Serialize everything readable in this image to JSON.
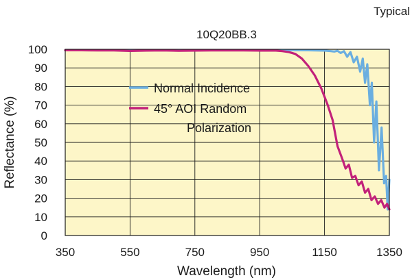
{
  "chart_data": {
    "type": "line",
    "title": "10Q20BB.3",
    "corner_label": "Typical",
    "xlabel": "Wavelength (nm)",
    "ylabel": "Reflectance (%)",
    "xlim": [
      350,
      1350
    ],
    "ylim": [
      0,
      100
    ],
    "xticks": [
      "350",
      "550",
      "750",
      "950",
      "1150",
      "1350"
    ],
    "yticks": [
      "0",
      "10",
      "20",
      "30",
      "40",
      "50",
      "60",
      "70",
      "80",
      "90",
      "100"
    ],
    "grid": true,
    "legend_position": "center-left",
    "plot_background": "#fdf6c8",
    "series": [
      {
        "name": "Normal Incidence",
        "color": "#6aaee0",
        "points": [
          [
            350,
            99.5
          ],
          [
            400,
            99.6
          ],
          [
            450,
            99.6
          ],
          [
            500,
            99.6
          ],
          [
            550,
            99.6
          ],
          [
            600,
            99.6
          ],
          [
            650,
            99.6
          ],
          [
            700,
            99.6
          ],
          [
            750,
            99.6
          ],
          [
            800,
            99.6
          ],
          [
            850,
            99.6
          ],
          [
            900,
            99.6
          ],
          [
            950,
            99.6
          ],
          [
            1000,
            99.6
          ],
          [
            1050,
            99.6
          ],
          [
            1100,
            99.5
          ],
          [
            1150,
            99.3
          ],
          [
            1170,
            99.0
          ],
          [
            1180,
            98.8
          ],
          [
            1190,
            99.2
          ],
          [
            1200,
            98.0
          ],
          [
            1210,
            99.0
          ],
          [
            1220,
            96.0
          ],
          [
            1230,
            98.5
          ],
          [
            1240,
            93.0
          ],
          [
            1250,
            96.0
          ],
          [
            1260,
            88.0
          ],
          [
            1268,
            95.0
          ],
          [
            1275,
            82.0
          ],
          [
            1282,
            92.0
          ],
          [
            1290,
            70.0
          ],
          [
            1296,
            82.0
          ],
          [
            1303,
            50.0
          ],
          [
            1310,
            72.0
          ],
          [
            1318,
            35.0
          ],
          [
            1326,
            58.0
          ],
          [
            1334,
            28.0
          ],
          [
            1340,
            32.0
          ],
          [
            1345,
            14.0
          ],
          [
            1350,
            30.0
          ]
        ]
      },
      {
        "name": "45° AOI Random Polarization",
        "color": "#c2217a",
        "points": [
          [
            350,
            99.5
          ],
          [
            400,
            99.5
          ],
          [
            450,
            99.4
          ],
          [
            500,
            99.4
          ],
          [
            550,
            99.1
          ],
          [
            600,
            99.3
          ],
          [
            650,
            99.4
          ],
          [
            700,
            99.2
          ],
          [
            750,
            99.3
          ],
          [
            800,
            99.4
          ],
          [
            850,
            99.4
          ],
          [
            900,
            99.4
          ],
          [
            950,
            99.3
          ],
          [
            1000,
            99.3
          ],
          [
            1020,
            99.0
          ],
          [
            1040,
            98.5
          ],
          [
            1060,
            97.5
          ],
          [
            1080,
            95.0
          ],
          [
            1100,
            91.0
          ],
          [
            1120,
            86.0
          ],
          [
            1140,
            79.0
          ],
          [
            1160,
            70.0
          ],
          [
            1175,
            62.0
          ],
          [
            1190,
            48.0
          ],
          [
            1205,
            41.0
          ],
          [
            1215,
            36.0
          ],
          [
            1225,
            38.0
          ],
          [
            1235,
            31.0
          ],
          [
            1245,
            32.0
          ],
          [
            1255,
            27.0
          ],
          [
            1265,
            29.0
          ],
          [
            1275,
            23.0
          ],
          [
            1285,
            25.0
          ],
          [
            1295,
            19.0
          ],
          [
            1305,
            21.0
          ],
          [
            1315,
            17.0
          ],
          [
            1325,
            19.0
          ],
          [
            1335,
            15.0
          ],
          [
            1343,
            17.0
          ],
          [
            1350,
            14.0
          ]
        ]
      }
    ]
  }
}
